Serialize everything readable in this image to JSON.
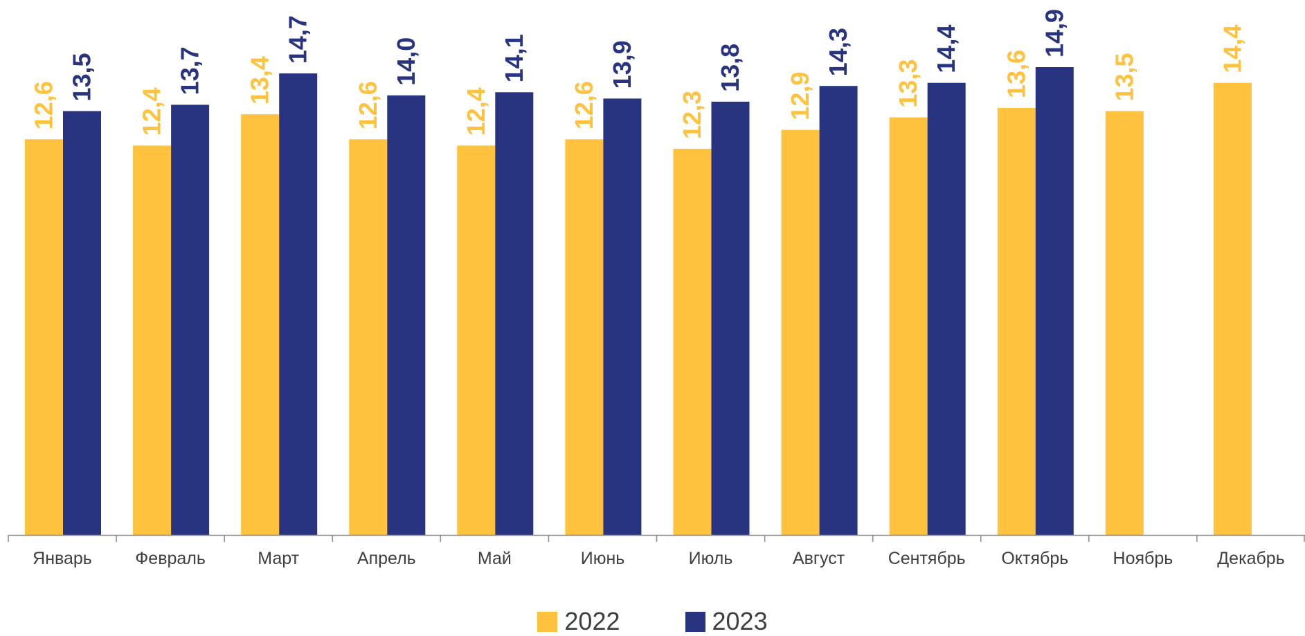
{
  "chart_data": {
    "type": "bar",
    "categories": [
      "Январь",
      "Февраль",
      "Март",
      "Апрель",
      "Май",
      "Июнь",
      "Июль",
      "Август",
      "Сентябрь",
      "Октябрь",
      "Ноябрь",
      "Декабрь"
    ],
    "series": [
      {
        "name": "2022",
        "color": "#FFC23E",
        "values": [
          12.6,
          12.4,
          13.4,
          12.6,
          12.4,
          12.6,
          12.3,
          12.9,
          13.3,
          13.6,
          13.5,
          14.4
        ],
        "labels": [
          "12,6",
          "12,4",
          "13,4",
          "12,6",
          "12,4",
          "12,6",
          "12,3",
          "12,9",
          "13,3",
          "13,6",
          "13,5",
          "14,4"
        ]
      },
      {
        "name": "2023",
        "color": "#283480",
        "values": [
          13.5,
          13.7,
          14.7,
          14.0,
          14.1,
          13.9,
          13.8,
          14.3,
          14.4,
          14.9,
          null,
          null
        ],
        "labels": [
          "13,5",
          "13,7",
          "14,7",
          "14,0",
          "14,1",
          "13,9",
          "13,8",
          "14,3",
          "14,4",
          "14,9",
          null,
          null
        ]
      }
    ],
    "ylim": [
      0,
      15.5
    ],
    "grid": false,
    "legend_position": "bottom",
    "title": "",
    "xlabel": "",
    "ylabel": ""
  }
}
